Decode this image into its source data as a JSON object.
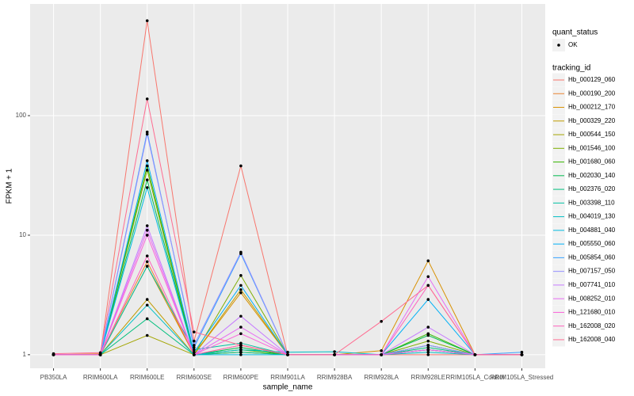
{
  "chart_data": {
    "type": "line",
    "x_label": "sample_name",
    "y_label": "FPKM + 1",
    "categories": [
      "PB350LA",
      "RRIM600LA",
      "RRIM600LE",
      "RRIM600SE",
      "RRIM600PE",
      "RRIM901LA",
      "RRIM928BA",
      "RRIM928LA",
      "RRIM928LE",
      "RRIM105LA_Control",
      "RRIM105LA_Stressed"
    ],
    "log_scale": true,
    "grid": true,
    "ylim": [
      0.77,
      860
    ],
    "yticks": [
      1,
      10,
      100
    ],
    "point_legend": {
      "title": "quant_status",
      "labels": [
        "OK"
      ]
    },
    "legend_title": "tracking_id",
    "series": [
      {
        "name": "Hb_000129_060",
        "color": "#F8766D",
        "values": [
          1,
          1,
          623,
          1.3,
          38,
          1,
          1,
          1,
          1,
          1,
          1
        ]
      },
      {
        "name": "Hb_000190_200",
        "color": "#EA8331",
        "values": [
          1,
          1.02,
          6.0,
          1,
          1.2,
          1,
          1,
          1,
          1.1,
          1,
          1
        ]
      },
      {
        "name": "Hb_000212_170",
        "color": "#D89000",
        "values": [
          1,
          1,
          5.5,
          1,
          3.3,
          1,
          1,
          1.08,
          6.1,
          1,
          1
        ]
      },
      {
        "name": "Hb_000329_220",
        "color": "#C09B00",
        "values": [
          1,
          1,
          2.9,
          1,
          3.5,
          1,
          1,
          1,
          1.2,
          1,
          1
        ]
      },
      {
        "name": "Hb_000544_150",
        "color": "#A3A500",
        "values": [
          1,
          1,
          1.45,
          1,
          1.05,
          1,
          1,
          1,
          1.1,
          1,
          1
        ]
      },
      {
        "name": "Hb_001546_100",
        "color": "#7CAE00",
        "values": [
          1,
          1,
          35,
          1,
          4.6,
          1,
          1,
          1,
          1.3,
          1,
          1
        ]
      },
      {
        "name": "Hb_001680_060",
        "color": "#39B600",
        "values": [
          1,
          1,
          38,
          1,
          1.1,
          1,
          1,
          1,
          1.5,
          1,
          1
        ]
      },
      {
        "name": "Hb_002030_140",
        "color": "#00BB4E",
        "values": [
          1,
          1,
          29,
          1,
          1.15,
          1,
          1,
          1,
          1.45,
          1,
          1
        ]
      },
      {
        "name": "Hb_002376_020",
        "color": "#00BF7D",
        "values": [
          1,
          1,
          2.0,
          1,
          1.05,
          1,
          1,
          1,
          1.15,
          1,
          1
        ]
      },
      {
        "name": "Hb_003398_110",
        "color": "#00C1A3",
        "values": [
          1,
          1,
          5.5,
          1.1,
          1.25,
          1,
          1,
          1,
          1.2,
          1,
          1
        ]
      },
      {
        "name": "Hb_004019_130",
        "color": "#00BFC4",
        "values": [
          1,
          1,
          2.6,
          1,
          1.1,
          1.05,
          1.06,
          1,
          1.05,
          1,
          1
        ]
      },
      {
        "name": "Hb_004881_040",
        "color": "#00BAE0",
        "values": [
          1,
          1,
          25,
          1,
          1,
          1,
          1,
          1,
          1.1,
          1,
          1
        ]
      },
      {
        "name": "Hb_005550_060",
        "color": "#00B0F6",
        "values": [
          1,
          1,
          42,
          1.05,
          3.8,
          1,
          1,
          1,
          2.9,
          1,
          1
        ]
      },
      {
        "name": "Hb_005854_060",
        "color": "#35A2FF",
        "values": [
          1,
          1,
          73,
          1.15,
          7.0,
          1,
          1,
          1,
          1.1,
          1,
          1.05
        ]
      },
      {
        "name": "Hb_007157_050",
        "color": "#9590FF",
        "values": [
          1,
          1,
          70,
          1.2,
          7.2,
          1,
          1,
          1,
          1.2,
          1,
          1
        ]
      },
      {
        "name": "Hb_007741_010",
        "color": "#C77CFF",
        "values": [
          1,
          1,
          12,
          1,
          2.1,
          1,
          1,
          1,
          1.7,
          1,
          1
        ]
      },
      {
        "name": "Hb_008252_010",
        "color": "#E76BF3",
        "values": [
          1,
          1,
          11,
          1,
          1.7,
          1,
          1,
          1,
          4.5,
          1,
          1
        ]
      },
      {
        "name": "Hb_121680_010",
        "color": "#FA62DB",
        "values": [
          1,
          1,
          10,
          1,
          1.5,
          1,
          1,
          1,
          1.1,
          1,
          1
        ]
      },
      {
        "name": "Hb_162008_020",
        "color": "#FF62BC",
        "values": [
          1,
          1,
          6.7,
          1,
          1.2,
          1,
          1,
          1,
          3.8,
          1,
          1
        ]
      },
      {
        "name": "Hb_162008_040",
        "color": "#FF6C91",
        "values": [
          1.02,
          1.04,
          138,
          1.55,
          1.2,
          1,
          1,
          1.9,
          3.8,
          1,
          1
        ]
      }
    ]
  }
}
